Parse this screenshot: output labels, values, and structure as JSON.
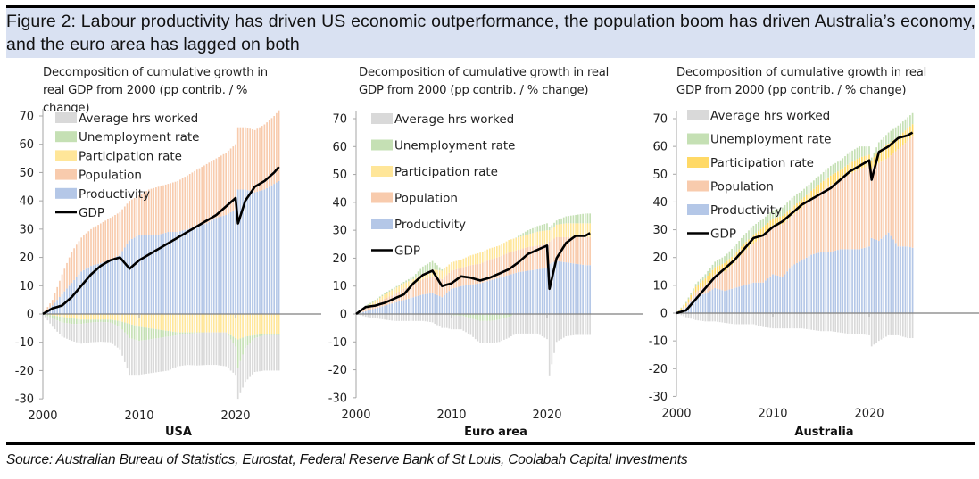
{
  "figure": {
    "title": "Figure 2: Labour productivity has driven US economic outperformance, the population boom has driven Australia’s economy, and the euro area has lagged on both",
    "source": "Source: Australian Bureau of Statistics, Eurostat, Federal Reserve Bank of St Louis, Coolabah Capital Investments",
    "colors": {
      "average_hrs_worked": "#d9d9d9",
      "unemployment_rate": "#c5e0b4",
      "participation_rate": "#ffe699",
      "participation_rate_au": "#ffd966",
      "population": "#f8cbad",
      "productivity": "#b4c7e7",
      "gdp": "#000000",
      "title_band": "#d9e1f2"
    }
  },
  "chart_data": [
    {
      "type": "bar",
      "stacked": true,
      "panel": "USA",
      "title": "Decomposition of cumulative growth in real GDP from 2000 (pp contrib. / % change)",
      "xlabel": "USA",
      "ylabel": "",
      "ylim": [
        -30,
        70
      ],
      "yticks": [
        70,
        60,
        50,
        40,
        30,
        20,
        10,
        0,
        -10,
        -20,
        -30
      ],
      "xticks": [
        2000,
        2010,
        2020
      ],
      "xlim": [
        2000,
        2029
      ],
      "legend": [
        "Average hrs worked",
        "Unemployment rate",
        "Participation rate",
        "Population",
        "Productivity",
        "GDP"
      ],
      "legend_position": "top-left",
      "x": [
        2000,
        2001,
        2002,
        2003,
        2004,
        2005,
        2006,
        2007,
        2008,
        2009,
        2010,
        2011,
        2012,
        2013,
        2014,
        2015,
        2016,
        2017,
        2018,
        2019,
        2020,
        2020.25,
        2021,
        2022,
        2023,
        2024,
        2024.5
      ],
      "series": [
        {
          "name": "Productivity",
          "values": [
            0,
            3,
            7,
            11,
            15,
            17,
            18,
            19,
            21,
            26,
            28,
            28,
            28,
            29,
            29,
            30,
            31,
            32,
            34,
            35,
            37,
            44,
            44,
            43,
            44,
            46,
            47
          ]
        },
        {
          "name": "Population",
          "values": [
            0,
            2,
            7,
            11,
            12,
            13,
            14,
            15,
            15,
            14,
            14,
            16,
            17,
            17,
            18,
            19,
            20,
            21,
            21,
            22,
            23,
            22,
            22,
            22,
            23,
            24,
            25
          ]
        },
        {
          "name": "Participation rate",
          "values": [
            0,
            -0.5,
            -1,
            -1.5,
            -2,
            -2,
            -2,
            -2,
            -2.5,
            -3.5,
            -4.5,
            -5,
            -5.5,
            -6,
            -6.5,
            -6.5,
            -6.5,
            -6.5,
            -6.5,
            -6.5,
            -8.5,
            -9,
            -8,
            -7.5,
            -7,
            -7,
            -7
          ]
        },
        {
          "name": "Unemployment rate",
          "values": [
            0,
            -1,
            -2,
            -2,
            -1.5,
            -1,
            -0.8,
            -1,
            -2,
            -5,
            -5,
            -4,
            -3,
            -2,
            -1,
            -0.5,
            -0.2,
            0,
            0,
            0,
            -3,
            -10,
            -4,
            -1,
            -0.5,
            -0.5,
            -0.5
          ]
        },
        {
          "name": "Average hrs worked",
          "values": [
            0,
            -3,
            -5,
            -6,
            -7,
            -7,
            -7,
            -7,
            -8,
            -13,
            -12,
            -12,
            -12,
            -12,
            -11,
            -11,
            -11.5,
            -11.5,
            -11.5,
            -12,
            -10,
            -11,
            -12,
            -12,
            -12.5,
            -12.5,
            -12.5
          ]
        },
        {
          "name": "GDP",
          "type": "line",
          "values": [
            0,
            2,
            3,
            6,
            10,
            14,
            17,
            19,
            20,
            16,
            19,
            21,
            23,
            25,
            27,
            29,
            31,
            33,
            35,
            38,
            41,
            32,
            40,
            45,
            47,
            50,
            52
          ]
        }
      ]
    },
    {
      "type": "bar",
      "stacked": true,
      "panel": "Euro area",
      "title": "Decomposition of cumulative growth in real GDP from 2000 (pp contrib. / % change)",
      "xlabel": "Euro area",
      "ylabel": "",
      "ylim": [
        -30,
        70
      ],
      "yticks": [
        70,
        60,
        50,
        40,
        30,
        20,
        10,
        0,
        -10,
        -20,
        -30
      ],
      "xticks": [
        2000,
        2010,
        2020
      ],
      "xlim": [
        2000,
        2029
      ],
      "legend": [
        "Average hrs worked",
        "Unemployment rate",
        "Participation rate",
        "Population",
        "Productivity",
        "GDP"
      ],
      "legend_position": "top-left",
      "x": [
        2000,
        2001,
        2002,
        2003,
        2004,
        2005,
        2006,
        2007,
        2008,
        2009,
        2010,
        2011,
        2012,
        2013,
        2014,
        2015,
        2016,
        2017,
        2018,
        2019,
        2020,
        2020.25,
        2021,
        2022,
        2023,
        2024,
        2024.5
      ],
      "series": [
        {
          "name": "Productivity",
          "values": [
            0,
            1,
            2,
            3,
            4,
            5,
            6,
            7,
            7.5,
            6,
            9,
            10,
            10.5,
            11,
            12,
            13,
            14,
            15,
            15.5,
            16,
            16.5,
            18,
            19,
            18.5,
            18,
            17.5,
            17.5
          ]
        },
        {
          "name": "Population",
          "values": [
            0,
            1,
            1.5,
            2.5,
            3,
            4,
            4.5,
            5.5,
            6,
            6.5,
            6.5,
            6.5,
            7,
            7,
            7.5,
            7.5,
            8,
            8,
            8.5,
            8.5,
            8.5,
            8,
            8.5,
            9,
            9.5,
            10,
            10
          ]
        },
        {
          "name": "Participation rate",
          "values": [
            0,
            0.5,
            1,
            1.5,
            2,
            2,
            2,
            2,
            2.5,
            3,
            3,
            3,
            3.5,
            4,
            4,
            4,
            4.5,
            4.5,
            4.5,
            5,
            5,
            4,
            4.5,
            5,
            5,
            5,
            5
          ]
        },
        {
          "name": "Unemployment rate",
          "values": [
            0,
            0.5,
            0.5,
            0.5,
            0.5,
            0.5,
            1,
            2.5,
            3,
            0.5,
            -0.5,
            -0.5,
            -1.5,
            -2.5,
            -2.5,
            -2,
            -1,
            0.5,
            1.5,
            2,
            2.5,
            1,
            1.5,
            2.5,
            3,
            3.5,
            3.5
          ]
        },
        {
          "name": "Average hrs worked",
          "values": [
            0,
            -1,
            -1.5,
            -2,
            -2.5,
            -2.5,
            -2.5,
            -2.5,
            -3,
            -5,
            -5,
            -5,
            -6,
            -8,
            -8,
            -8,
            -7.5,
            -7,
            -7,
            -7,
            -9,
            -22,
            -10,
            -8,
            -7.5,
            -7.5,
            -7.5
          ]
        },
        {
          "name": "GDP",
          "type": "line",
          "values": [
            0,
            2.5,
            3,
            4,
            5.5,
            7,
            11,
            14,
            15.5,
            10,
            11,
            13.5,
            13,
            12,
            13,
            14.5,
            16,
            18.5,
            21.5,
            23,
            24.5,
            9,
            20,
            25.5,
            28,
            28,
            29
          ]
        }
      ]
    },
    {
      "type": "bar",
      "stacked": true,
      "panel": "Australia",
      "title": "Decomposition of cumulative growth in real GDP from 2000 (pp contrib. / % change)",
      "xlabel": "Australia",
      "ylabel": "",
      "ylim": [
        -30,
        70
      ],
      "yticks": [
        70,
        60,
        50,
        40,
        30,
        20,
        10,
        0,
        -10,
        -20,
        -30
      ],
      "xticks": [
        2000,
        2010,
        2020
      ],
      "xlim": [
        2000,
        2029
      ],
      "legend": [
        "Average hrs worked",
        "Unemployment rate",
        "Participation rate",
        "Population",
        "Productivity",
        "GDP"
      ],
      "legend_position": "top-left",
      "x": [
        2000,
        2001,
        2002,
        2003,
        2004,
        2005,
        2006,
        2007,
        2008,
        2009,
        2010,
        2011,
        2012,
        2013,
        2014,
        2015,
        2016,
        2017,
        2018,
        2019,
        2020,
        2020.25,
        2021,
        2022,
        2023,
        2024,
        2024.5
      ],
      "series": [
        {
          "name": "Productivity",
          "values": [
            0,
            2,
            6,
            7,
            9,
            8,
            9,
            10,
            11,
            11,
            14,
            13,
            17,
            19,
            21,
            22,
            22,
            23,
            23,
            23,
            24,
            27,
            26,
            29,
            24,
            24,
            23.5
          ]
        },
        {
          "name": "Population",
          "values": [
            0,
            0.5,
            1.5,
            3,
            5,
            7,
            9,
            12,
            14,
            17,
            17,
            19,
            18,
            19,
            20,
            22,
            24,
            25,
            27,
            29,
            29,
            25,
            28,
            27,
            35,
            38,
            40
          ]
        },
        {
          "name": "Participation rate",
          "values": [
            0,
            1,
            2,
            2.5,
            2.5,
            3,
            3,
            3,
            3,
            3,
            3,
            3,
            3,
            3,
            3,
            3,
            3.5,
            3.5,
            4,
            4,
            4,
            3,
            4.5,
            5,
            4.5,
            4.5,
            4.5
          ]
        },
        {
          "name": "Unemployment rate",
          "values": [
            0,
            0.5,
            1,
            1.5,
            2,
            2.5,
            3,
            3,
            3.5,
            3,
            3,
            3,
            3.5,
            3,
            3,
            3,
            3.5,
            3.5,
            4,
            4,
            3,
            1,
            3,
            4,
            4,
            4,
            4
          ]
        },
        {
          "name": "Average hrs worked",
          "values": [
            0,
            -1.5,
            -2.5,
            -3,
            -3,
            -3.5,
            -4,
            -4,
            -4,
            -5,
            -5.5,
            -5.5,
            -5.5,
            -5.5,
            -6,
            -6.5,
            -6.5,
            -7,
            -7.5,
            -7.5,
            -8,
            -12,
            -10,
            -8,
            -8,
            -9,
            -9
          ]
        },
        {
          "name": "GDP",
          "type": "line",
          "values": [
            0,
            1,
            5,
            9,
            13,
            16,
            19,
            23,
            27,
            28,
            31,
            33,
            36,
            39,
            41,
            43,
            45,
            48,
            51,
            53,
            55,
            48,
            58,
            60,
            63,
            64,
            65
          ]
        }
      ]
    }
  ]
}
